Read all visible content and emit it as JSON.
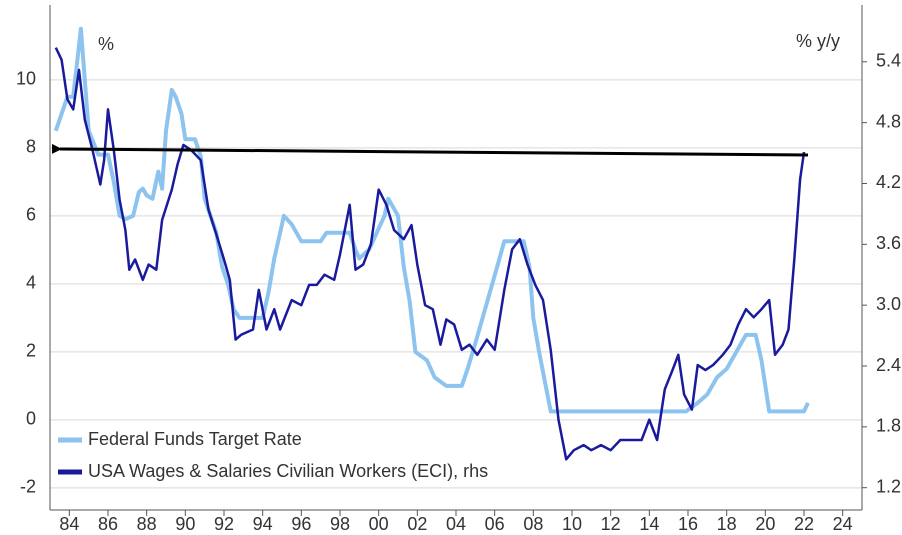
{
  "chart_data": {
    "type": "line",
    "y_label": "%",
    "y2_label": "% y/y",
    "xlim": [
      1983,
      2025
    ],
    "ylim": [
      -2.65,
      12.2
    ],
    "y2lim": [
      0.98,
      5.96
    ],
    "xticks": [
      {
        "value": 1984,
        "label": "84"
      },
      {
        "value": 1986,
        "label": "86"
      },
      {
        "value": 1988,
        "label": "88"
      },
      {
        "value": 1990,
        "label": "90"
      },
      {
        "value": 1992,
        "label": "92"
      },
      {
        "value": 1994,
        "label": "94"
      },
      {
        "value": 1996,
        "label": "96"
      },
      {
        "value": 1998,
        "label": "98"
      },
      {
        "value": 2000,
        "label": "00"
      },
      {
        "value": 2002,
        "label": "02"
      },
      {
        "value": 2004,
        "label": "04"
      },
      {
        "value": 2006,
        "label": "06"
      },
      {
        "value": 2008,
        "label": "08"
      },
      {
        "value": 2010,
        "label": "10"
      },
      {
        "value": 2012,
        "label": "12"
      },
      {
        "value": 2014,
        "label": "14"
      },
      {
        "value": 2016,
        "label": "16"
      },
      {
        "value": 2018,
        "label": "18"
      },
      {
        "value": 2020,
        "label": "20"
      },
      {
        "value": 2022,
        "label": "22"
      },
      {
        "value": 2024,
        "label": "24"
      }
    ],
    "yticks": [
      -2,
      0,
      2,
      4,
      6,
      8,
      10
    ],
    "y2ticks": [
      1.2,
      1.8,
      2.4,
      {
        "value": 3,
        "label": "3.0"
      },
      3.6,
      4.2,
      4.8,
      5.4
    ],
    "grid": true,
    "legend": "lower left",
    "series": [
      {
        "name": "Federal Funds Target Rate",
        "color": "#8cc3ef",
        "x": [
          1983.3,
          1983.6,
          1983.9,
          1984.2,
          1984.5,
          1984.6,
          1984.8,
          1985.0,
          1985.5,
          1986.0,
          1986.3,
          1986.6,
          1986.9,
          1987.3,
          1987.6,
          1987.8,
          1988.0,
          1988.3,
          1988.6,
          1988.8,
          1989.0,
          1989.3,
          1989.5,
          1989.8,
          1990.0,
          1990.5,
          1990.8,
          1991.0,
          1991.3,
          1991.6,
          1991.9,
          1992.2,
          1992.5,
          1992.8,
          1993.5,
          1994.0,
          1994.3,
          1994.6,
          1994.9,
          1995.1,
          1995.5,
          1996.0,
          1997.0,
          1997.3,
          1998.5,
          1998.8,
          1999.0,
          1999.5,
          1999.9,
          2000.3,
          2000.5,
          2001.0,
          2001.3,
          2001.6,
          2001.9,
          2002.5,
          2002.9,
          2003.5,
          2004.3,
          2004.6,
          2005.0,
          2005.5,
          2006.0,
          2006.5,
          2007.5,
          2007.8,
          2008.0,
          2008.3,
          2008.9,
          2015.9,
          2016.5,
          2017.0,
          2017.5,
          2018.0,
          2018.5,
          2019.0,
          2019.5,
          2019.8,
          2020.2,
          2022.0,
          2022.2
        ],
        "values": [
          8.5,
          9.0,
          9.5,
          9.5,
          11.0,
          11.5,
          10.0,
          8.5,
          7.8,
          7.8,
          7.0,
          6.0,
          5.9,
          6.0,
          6.7,
          6.8,
          6.6,
          6.5,
          7.3,
          6.8,
          8.5,
          9.7,
          9.5,
          9.0,
          8.25,
          8.25,
          7.75,
          6.5,
          6.0,
          5.5,
          4.5,
          4.0,
          3.25,
          3.0,
          3.0,
          3.0,
          3.75,
          4.75,
          5.5,
          6.0,
          5.75,
          5.25,
          5.25,
          5.5,
          5.5,
          5.0,
          4.75,
          5.0,
          5.5,
          6.0,
          6.5,
          6.0,
          4.5,
          3.5,
          2.0,
          1.75,
          1.25,
          1.0,
          1.0,
          1.5,
          2.25,
          3.25,
          4.25,
          5.25,
          5.25,
          4.5,
          3.0,
          2.0,
          0.25,
          0.25,
          0.5,
          0.75,
          1.25,
          1.5,
          2.0,
          2.5,
          2.5,
          1.75,
          0.25,
          0.25,
          0.5
        ]
      },
      {
        "name": "USA Wages & Salaries Civilian Workers (ECI), rhs",
        "color": "#1a1a9c",
        "axis": "y2",
        "x": [
          1983.3,
          1983.6,
          1983.9,
          1984.2,
          1984.5,
          1984.8,
          1985.2,
          1985.6,
          1985.8,
          1986.0,
          1986.3,
          1986.6,
          1986.9,
          1987.1,
          1987.4,
          1987.8,
          1988.1,
          1988.5,
          1988.8,
          1989.3,
          1989.6,
          1989.9,
          1990.3,
          1990.8,
          1991.2,
          1991.6,
          1992.0,
          1992.3,
          1992.6,
          1992.9,
          1993.5,
          1993.8,
          1994.2,
          1994.6,
          1994.9,
          1995.5,
          1996.0,
          1996.4,
          1996.8,
          1997.2,
          1997.7,
          1998.0,
          1998.5,
          1998.8,
          1999.2,
          1999.6,
          2000.0,
          2000.4,
          2000.8,
          2001.3,
          2001.7,
          2002.0,
          2002.4,
          2002.8,
          2003.2,
          2003.5,
          2003.9,
          2004.3,
          2004.7,
          2005.1,
          2005.6,
          2006.0,
          2006.5,
          2006.9,
          2007.3,
          2007.7,
          2008.1,
          2008.5,
          2008.9,
          2009.3,
          2009.7,
          2010.1,
          2010.6,
          2011.0,
          2011.5,
          2012.0,
          2012.5,
          2013.0,
          2013.6,
          2014.0,
          2014.4,
          2014.8,
          2015.2,
          2015.5,
          2015.8,
          2016.2,
          2016.5,
          2016.9,
          2017.3,
          2017.8,
          2018.2,
          2018.6,
          2019.0,
          2019.4,
          2019.8,
          2020.2,
          2020.5,
          2020.9,
          2021.2,
          2021.5,
          2021.8,
          2022.0
        ],
        "values": [
          5.54,
          5.42,
          5.03,
          4.93,
          5.32,
          4.83,
          4.53,
          4.19,
          4.43,
          4.93,
          4.53,
          4.04,
          3.74,
          3.35,
          3.45,
          3.25,
          3.4,
          3.35,
          3.84,
          4.14,
          4.39,
          4.58,
          4.53,
          4.43,
          3.94,
          3.7,
          3.45,
          3.25,
          2.66,
          2.71,
          2.76,
          3.15,
          2.76,
          2.96,
          2.76,
          3.05,
          3.0,
          3.2,
          3.2,
          3.3,
          3.25,
          3.5,
          3.99,
          3.35,
          3.4,
          3.6,
          4.14,
          3.99,
          3.74,
          3.65,
          3.79,
          3.4,
          3.0,
          2.96,
          2.61,
          2.86,
          2.81,
          2.56,
          2.61,
          2.51,
          2.66,
          2.56,
          3.15,
          3.55,
          3.65,
          3.4,
          3.2,
          3.05,
          2.56,
          1.87,
          1.48,
          1.57,
          1.62,
          1.57,
          1.62,
          1.57,
          1.67,
          1.67,
          1.67,
          1.87,
          1.67,
          2.17,
          2.36,
          2.51,
          2.12,
          1.97,
          2.41,
          2.36,
          2.41,
          2.51,
          2.61,
          2.81,
          2.96,
          2.88,
          2.96,
          3.05,
          2.51,
          2.61,
          2.76,
          3.45,
          4.24,
          4.51
        ]
      }
    ]
  }
}
